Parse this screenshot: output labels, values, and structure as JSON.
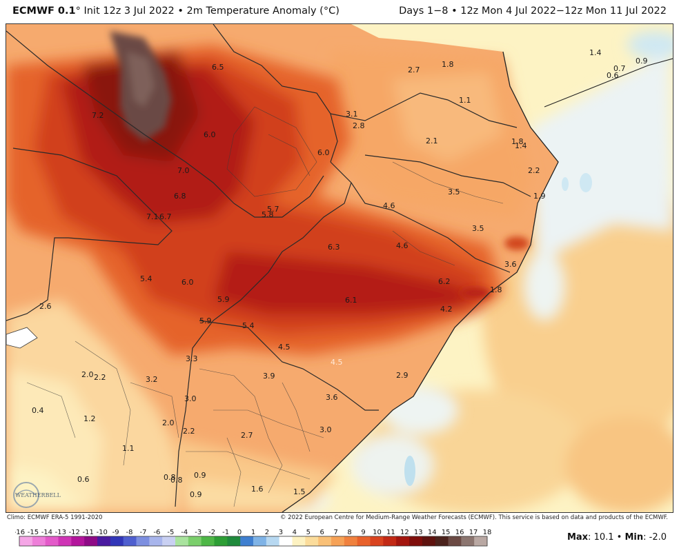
{
  "header": {
    "model": "ECMWF 0.1",
    "degree": "°",
    "init": "Init 12z 3 Jul 2022 • 2m Temperature Anomaly (°C)",
    "period": "Days 1−8 • 12z Mon 4 Jul 2022−12z Mon 11 Jul 2022"
  },
  "footer": {
    "climo": "Climo: ECMWF ERA-5 1991-2020",
    "copyright": "© 2022 European Centre for Medium-Range Weather Forecasts (ECMWF). This service is based on data and products of the ECMWF.",
    "max_label": "Max",
    "max_value": "10.1",
    "min_label": "Min",
    "min_value": "-2.0"
  },
  "logo": {
    "text": "WEATHERBELL",
    "icon": "weatherbell-logo-icon"
  },
  "colors": {
    "ocean": "#f6f0e0",
    "extreme": "#6b4a44",
    "hot": "#b31a10",
    "warm": "#e8662e",
    "mild": "#f5a86a",
    "slight": "#fbd59b",
    "neutral": "#fdf3c4",
    "cool": "#cfe8f3"
  },
  "scale": {
    "labels": [
      "-16",
      "-15",
      "-14",
      "-13",
      "-12",
      "-11",
      "-10",
      "-9",
      "-8",
      "-7",
      "-6",
      "-5",
      "-4",
      "-3",
      "-2",
      "-1",
      "0",
      "1",
      "2",
      "3",
      "4",
      "5",
      "6",
      "7",
      "8",
      "9",
      "10",
      "11",
      "12",
      "13",
      "14",
      "15",
      "16",
      "17",
      "18"
    ],
    "colors": [
      "#f5a6e6",
      "#ee7fd9",
      "#e35ac9",
      "#cf34b5",
      "#b3159c",
      "#8e0a86",
      "#4a1aa0",
      "#3136b8",
      "#4f5fcf",
      "#7d8fe0",
      "#a8b5ec",
      "#c9d0f2",
      "#a9e39e",
      "#7bcf6c",
      "#4eb747",
      "#2d9e35",
      "#1f8a3c",
      "#3f7fd0",
      "#7fb3e6",
      "#b7d8f1",
      "#ffffff",
      "#fdf2c2",
      "#fbdc9b",
      "#f9c077",
      "#f6a257",
      "#f0813e",
      "#e8612b",
      "#d9431f",
      "#c22915",
      "#a3150e",
      "#7f0e0b",
      "#5e120e",
      "#4a221c",
      "#6b4a44",
      "#8c7670",
      "#b9a8a3"
    ]
  },
  "map_labels": [
    {
      "text": "6.5",
      "light": false
    },
    {
      "text": "7.2",
      "light": false
    },
    {
      "text": "6.0",
      "light": false
    },
    {
      "text": "7.0",
      "light": false
    },
    {
      "text": "6.8",
      "light": false
    },
    {
      "text": "7.1",
      "light": false
    },
    {
      "text": "6.7",
      "light": false
    },
    {
      "text": "5.7",
      "light": false
    },
    {
      "text": "5.8",
      "light": false
    },
    {
      "text": "6.0",
      "light": false
    },
    {
      "text": "2.7",
      "light": false
    },
    {
      "text": "1.8",
      "light": false
    },
    {
      "text": "1.4",
      "light": false
    },
    {
      "text": "0.9",
      "light": false
    },
    {
      "text": "0.7",
      "light": false
    },
    {
      "text": "0.6",
      "light": false
    },
    {
      "text": "1.1",
      "light": false
    },
    {
      "text": "3.1",
      "light": false
    },
    {
      "text": "2.8",
      "light": false
    },
    {
      "text": "2.1",
      "light": false
    },
    {
      "text": "1.8",
      "light": false
    },
    {
      "text": "1.4",
      "light": false
    },
    {
      "text": "2.2",
      "light": false
    },
    {
      "text": "1.9",
      "light": false
    },
    {
      "text": "3.5",
      "light": false
    },
    {
      "text": "4.6",
      "light": false
    },
    {
      "text": "3.5",
      "light": false
    },
    {
      "text": "4.6",
      "light": false
    },
    {
      "text": "6.3",
      "light": false
    },
    {
      "text": "3.6",
      "light": false
    },
    {
      "text": "6.2",
      "light": false
    },
    {
      "text": "1.8",
      "light": false
    },
    {
      "text": "6.1",
      "light": false
    },
    {
      "text": "4.2",
      "light": false
    },
    {
      "text": "5.4",
      "light": false
    },
    {
      "text": "6.0",
      "light": false
    },
    {
      "text": "5.9",
      "light": false
    },
    {
      "text": "5.9",
      "light": false
    },
    {
      "text": "5.4",
      "light": false
    },
    {
      "text": "4.5",
      "light": false
    },
    {
      "text": "4.5",
      "light": true
    },
    {
      "text": "2.6",
      "light": false
    },
    {
      "text": "3.3",
      "light": false
    },
    {
      "text": "3.9",
      "light": false
    },
    {
      "text": "2.9",
      "light": false
    },
    {
      "text": "2.0",
      "light": false
    },
    {
      "text": "2.2",
      "light": false
    },
    {
      "text": "3.2",
      "light": false
    },
    {
      "text": "3.0",
      "light": false
    },
    {
      "text": "3.6",
      "light": false
    },
    {
      "text": "0.4",
      "light": false
    },
    {
      "text": "1.2",
      "light": false
    },
    {
      "text": "2.0",
      "light": false
    },
    {
      "text": "2.2",
      "light": false
    },
    {
      "text": "2.7",
      "light": false
    },
    {
      "text": "3.0",
      "light": false
    },
    {
      "text": "1.1",
      "light": false
    },
    {
      "text": "0.6",
      "light": false
    },
    {
      "text": "0.9",
      "light": false
    },
    {
      "text": "0.8",
      "light": false
    },
    {
      "text": "0.8",
      "light": false
    },
    {
      "text": "1.6",
      "light": false
    },
    {
      "text": "1.5",
      "light": false
    },
    {
      "text": "0.9",
      "light": false
    }
  ]
}
